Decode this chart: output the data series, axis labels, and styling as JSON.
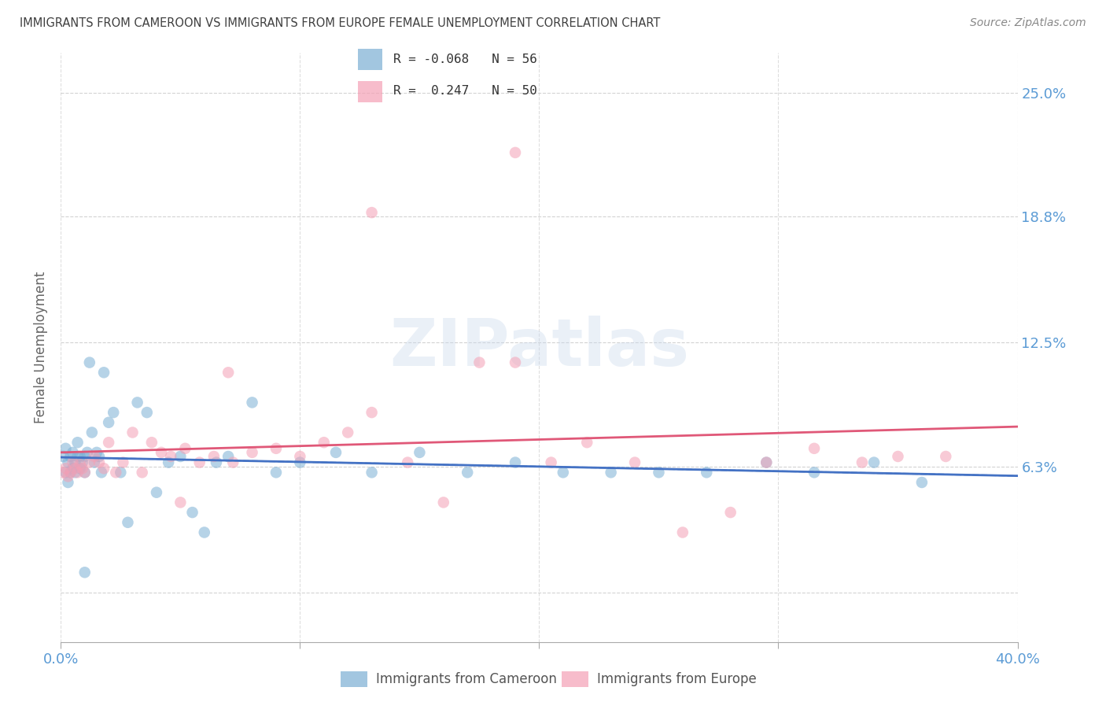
{
  "title": "IMMIGRANTS FROM CAMEROON VS IMMIGRANTS FROM EUROPE FEMALE UNEMPLOYMENT CORRELATION CHART",
  "source": "Source: ZipAtlas.com",
  "ylabel": "Female Unemployment",
  "xlim": [
    0.0,
    0.4
  ],
  "ylim": [
    -0.025,
    0.27
  ],
  "ytick_vals": [
    0.0,
    0.063,
    0.125,
    0.188,
    0.25
  ],
  "ytick_labels": [
    "",
    "6.3%",
    "12.5%",
    "18.8%",
    "25.0%"
  ],
  "xtick_vals": [
    0.0,
    0.1,
    0.2,
    0.3,
    0.4
  ],
  "xtick_labels": [
    "0.0%",
    "",
    "",
    "",
    "40.0%"
  ],
  "watermark": "ZIPatlas",
  "background_color": "#ffffff",
  "grid_color": "#c8c8c8",
  "right_label_color": "#5b9bd5",
  "title_color": "#404040",
  "cam_color": "#7bafd4",
  "eur_color": "#f4a0b5",
  "cam_line_color": "#4472c4",
  "eur_line_color": "#e05878",
  "cam_x": [
    0.001,
    0.002,
    0.002,
    0.003,
    0.003,
    0.004,
    0.004,
    0.005,
    0.005,
    0.006,
    0.006,
    0.007,
    0.007,
    0.008,
    0.008,
    0.009,
    0.01,
    0.01,
    0.011,
    0.012,
    0.013,
    0.014,
    0.015,
    0.016,
    0.017,
    0.018,
    0.02,
    0.022,
    0.025,
    0.028,
    0.032,
    0.036,
    0.04,
    0.045,
    0.05,
    0.055,
    0.06,
    0.065,
    0.07,
    0.08,
    0.09,
    0.1,
    0.115,
    0.13,
    0.15,
    0.17,
    0.19,
    0.21,
    0.23,
    0.25,
    0.27,
    0.295,
    0.315,
    0.34,
    0.36,
    0.01
  ],
  "cam_y": [
    0.068,
    0.06,
    0.072,
    0.055,
    0.065,
    0.068,
    0.06,
    0.062,
    0.07,
    0.065,
    0.06,
    0.068,
    0.075,
    0.062,
    0.068,
    0.065,
    0.068,
    0.06,
    0.07,
    0.115,
    0.08,
    0.065,
    0.07,
    0.068,
    0.06,
    0.11,
    0.085,
    0.09,
    0.06,
    0.035,
    0.095,
    0.09,
    0.05,
    0.065,
    0.068,
    0.04,
    0.03,
    0.065,
    0.068,
    0.095,
    0.06,
    0.065,
    0.07,
    0.06,
    0.07,
    0.06,
    0.065,
    0.06,
    0.06,
    0.06,
    0.06,
    0.065,
    0.06,
    0.065,
    0.055,
    0.01
  ],
  "eur_x": [
    0.001,
    0.002,
    0.003,
    0.004,
    0.005,
    0.006,
    0.007,
    0.008,
    0.009,
    0.01,
    0.012,
    0.014,
    0.016,
    0.018,
    0.02,
    0.023,
    0.026,
    0.03,
    0.034,
    0.038,
    0.042,
    0.046,
    0.052,
    0.058,
    0.064,
    0.072,
    0.08,
    0.09,
    0.1,
    0.11,
    0.12,
    0.13,
    0.145,
    0.16,
    0.175,
    0.19,
    0.205,
    0.22,
    0.24,
    0.26,
    0.28,
    0.295,
    0.315,
    0.335,
    0.35,
    0.37,
    0.19,
    0.13,
    0.07,
    0.05
  ],
  "eur_y": [
    0.06,
    0.062,
    0.058,
    0.06,
    0.065,
    0.062,
    0.06,
    0.064,
    0.062,
    0.06,
    0.065,
    0.068,
    0.065,
    0.062,
    0.075,
    0.06,
    0.065,
    0.08,
    0.06,
    0.075,
    0.07,
    0.068,
    0.072,
    0.065,
    0.068,
    0.065,
    0.07,
    0.072,
    0.068,
    0.075,
    0.08,
    0.09,
    0.065,
    0.045,
    0.115,
    0.115,
    0.065,
    0.075,
    0.065,
    0.03,
    0.04,
    0.065,
    0.072,
    0.065,
    0.068,
    0.068,
    0.22,
    0.19,
    0.11,
    0.045
  ],
  "legend_label1": "R = -0.068   N = 56",
  "legend_label2": "R =  0.247   N = 50",
  "bottom_label1": "Immigrants from Cameroon",
  "bottom_label2": "Immigrants from Europe"
}
